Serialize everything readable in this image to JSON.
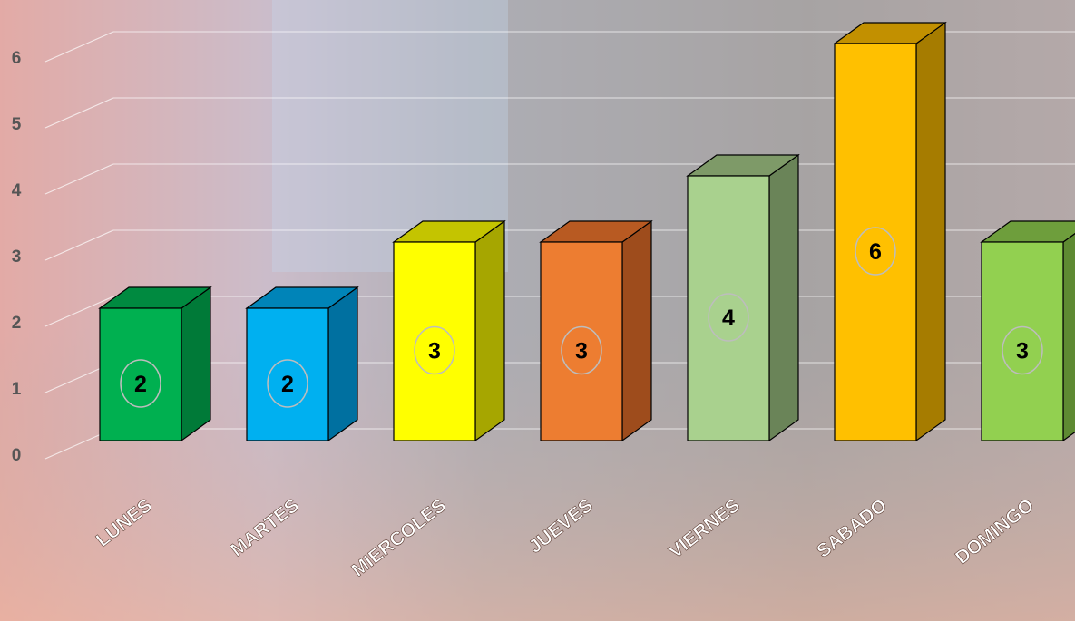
{
  "chart_data": {
    "type": "bar",
    "categories": [
      "LUNES",
      "MARTES",
      "MIERCOLES",
      "JUEVES",
      "VIERNES",
      "SABADO",
      "DOMINGO"
    ],
    "values": [
      2,
      2,
      3,
      3,
      4,
      6,
      3
    ],
    "yticks": [
      "0",
      "1",
      "2",
      "3",
      "4",
      "5",
      "6"
    ],
    "ylim": [
      0,
      6
    ],
    "grid": true,
    "legend": "none",
    "title": "",
    "xlabel": "",
    "ylabel": "",
    "colors": [
      "#00b050",
      "#00b0f0",
      "#ffff00",
      "#ed7d31",
      "#a9d18e",
      "#ffc000",
      "#92d050"
    ],
    "side_colors": [
      "#007a38",
      "#0070a0",
      "#a6a600",
      "#9e4c1c",
      "#6a8458",
      "#a67c00",
      "#5e8a32"
    ],
    "top_colors": [
      "#008a40",
      "#0084b8",
      "#c4c400",
      "#b85a22",
      "#7e9a68",
      "#c29000",
      "#6e9e3c"
    ]
  }
}
